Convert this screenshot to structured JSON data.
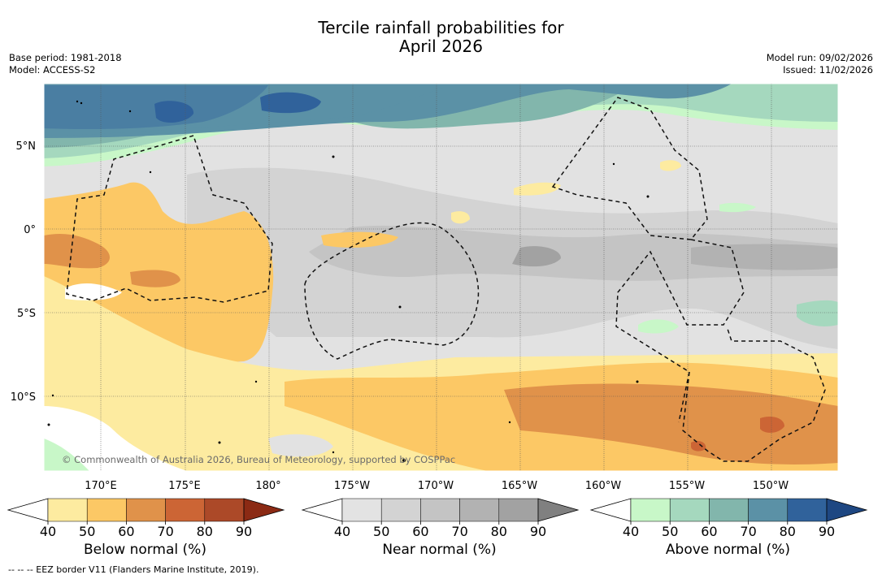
{
  "title": {
    "line1": "Tercile rainfall probabilities for",
    "line2": "April 2026"
  },
  "info_left": {
    "base_period": "Base period: 1981-2018",
    "model": "Model: ACCESS-S2"
  },
  "info_right": {
    "model_run": "Model run: 09/02/2026",
    "issued": "Issued: 11/02/2026"
  },
  "map": {
    "lat_labels": [
      {
        "text": "5°N",
        "lat": 5
      },
      {
        "text": "0°",
        "lat": 0
      },
      {
        "text": "5°S",
        "lat": -5
      },
      {
        "text": "10°S",
        "lat": -10
      }
    ],
    "lon_labels": [
      {
        "text": "170°E",
        "lon": 170
      },
      {
        "text": "175°E",
        "lon": 175
      },
      {
        "text": "180°",
        "lon": 180
      },
      {
        "text": "175°W",
        "lon": 185
      },
      {
        "text": "170°W",
        "lon": 190
      },
      {
        "text": "165°W",
        "lon": 195
      },
      {
        "text": "160°W",
        "lon": 200
      },
      {
        "text": "155°W",
        "lon": 205
      },
      {
        "text": "150°W",
        "lon": 210
      }
    ],
    "copyright": "© Commonwealth of Australia 2026, Bureau of Meteorology, supported by COSPPac"
  },
  "colorbars": [
    {
      "label": "Below normal (%)",
      "ticks": [
        "40",
        "50",
        "60",
        "70",
        "80",
        "90"
      ],
      "colors": [
        "#ffffff",
        "#fdeba0",
        "#fcc865",
        "#e0924a",
        "#cc6535",
        "#ac4928",
        "#8b2a14"
      ]
    },
    {
      "label": "Near normal (%)",
      "ticks": [
        "40",
        "50",
        "60",
        "70",
        "80",
        "90"
      ],
      "colors": [
        "#ffffff",
        "#e3e3e3",
        "#d3d3d3",
        "#c4c4c4",
        "#b2b2b2",
        "#a2a2a2",
        "#808080"
      ]
    },
    {
      "label": "Above normal (%)",
      "ticks": [
        "40",
        "50",
        "60",
        "70",
        "80",
        "90"
      ],
      "colors": [
        "#ffffff",
        "#c8f7c8",
        "#a5d8be",
        "#82b6ac",
        "#5b91a6",
        "#30629b",
        "#1e4782"
      ]
    }
  ],
  "footnote": "-- -- -- EEZ border V11 (Flanders Marine Institute, 2019)."
}
